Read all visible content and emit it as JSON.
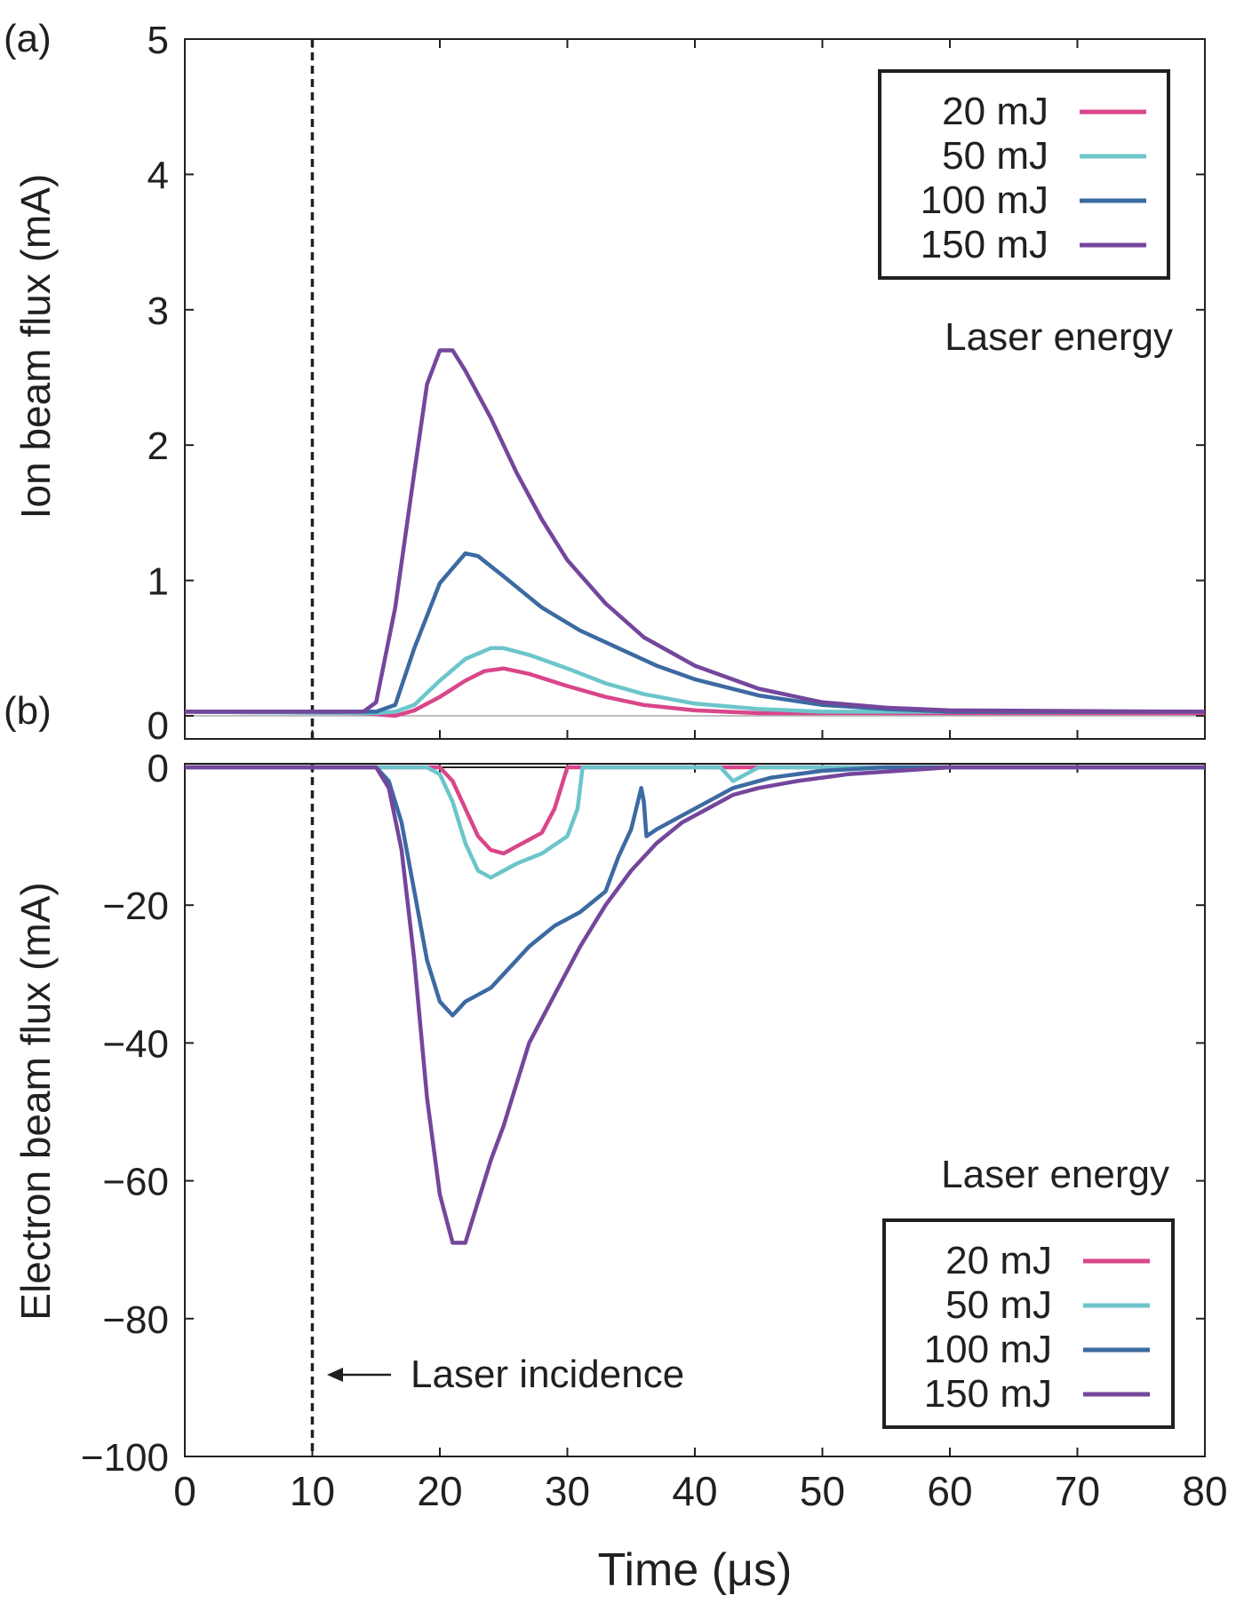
{
  "chart_data": [
    {
      "panel_label": "(a)",
      "type": "line",
      "ylabel": "Ion beam flux (mA)",
      "xlim": [
        0,
        80
      ],
      "ylim": [
        0,
        5
      ],
      "yticks": [
        "0",
        "1",
        "2",
        "3",
        "4",
        "5"
      ],
      "legend_title": "Laser energy",
      "legend_position": "top-right",
      "series": [
        {
          "name": "20 mJ",
          "color": "#d9468a",
          "points": [
            [
              0,
              0.03
            ],
            [
              14,
              0.02
            ],
            [
              16.5,
              0.0
            ],
            [
              18,
              0.04
            ],
            [
              20,
              0.14
            ],
            [
              22,
              0.26
            ],
            [
              23.5,
              0.33
            ],
            [
              25,
              0.35
            ],
            [
              27,
              0.31
            ],
            [
              30,
              0.22
            ],
            [
              33,
              0.14
            ],
            [
              36,
              0.08
            ],
            [
              40,
              0.04
            ],
            [
              45,
              0.02
            ],
            [
              80,
              0.02
            ]
          ]
        },
        {
          "name": "50 mJ",
          "color": "#6cc5cb",
          "points": [
            [
              0,
              0.03
            ],
            [
              15,
              0.02
            ],
            [
              16.5,
              0.03
            ],
            [
              18,
              0.08
            ],
            [
              20,
              0.26
            ],
            [
              22,
              0.42
            ],
            [
              24,
              0.5
            ],
            [
              25,
              0.5
            ],
            [
              27,
              0.45
            ],
            [
              30,
              0.35
            ],
            [
              33,
              0.24
            ],
            [
              36,
              0.16
            ],
            [
              40,
              0.09
            ],
            [
              45,
              0.05
            ],
            [
              50,
              0.03
            ],
            [
              80,
              0.03
            ]
          ]
        },
        {
          "name": "100 mJ",
          "color": "#3c6aa2",
          "points": [
            [
              0,
              0.03
            ],
            [
              15,
              0.03
            ],
            [
              16.5,
              0.08
            ],
            [
              18,
              0.5
            ],
            [
              20,
              0.98
            ],
            [
              22,
              1.2
            ],
            [
              23,
              1.18
            ],
            [
              25,
              1.03
            ],
            [
              28,
              0.8
            ],
            [
              31,
              0.63
            ],
            [
              34,
              0.5
            ],
            [
              37,
              0.37
            ],
            [
              40,
              0.27
            ],
            [
              45,
              0.15
            ],
            [
              50,
              0.08
            ],
            [
              55,
              0.05
            ],
            [
              60,
              0.03
            ],
            [
              80,
              0.03
            ]
          ]
        },
        {
          "name": "150 mJ",
          "color": "#74469c",
          "points": [
            [
              0,
              0.03
            ],
            [
              14,
              0.03
            ],
            [
              15,
              0.1
            ],
            [
              16.5,
              0.8
            ],
            [
              18,
              1.8
            ],
            [
              19,
              2.45
            ],
            [
              20,
              2.7
            ],
            [
              21,
              2.7
            ],
            [
              22,
              2.55
            ],
            [
              24,
              2.2
            ],
            [
              26,
              1.8
            ],
            [
              28,
              1.45
            ],
            [
              30,
              1.15
            ],
            [
              33,
              0.83
            ],
            [
              36,
              0.58
            ],
            [
              40,
              0.37
            ],
            [
              45,
              0.2
            ],
            [
              50,
              0.1
            ],
            [
              55,
              0.06
            ],
            [
              60,
              0.04
            ],
            [
              80,
              0.03
            ]
          ]
        }
      ]
    },
    {
      "panel_label": "(b)",
      "type": "line",
      "ylabel": "Electron beam  flux (mA)",
      "xlabel": "Time (μs)",
      "xlim": [
        0,
        80
      ],
      "ylim": [
        -100,
        0
      ],
      "xticks": [
        "0",
        "10",
        "20",
        "30",
        "40",
        "50",
        "60",
        "70",
        "80"
      ],
      "yticks": [
        "0",
        "−20",
        "−40",
        "−60",
        "−80",
        "−100"
      ],
      "legend_title": "Laser energy",
      "legend_position": "bottom-right",
      "series": [
        {
          "name": "20 mJ",
          "color": "#d9468a",
          "points": [
            [
              0,
              0
            ],
            [
              20,
              0
            ],
            [
              21,
              -2
            ],
            [
              22,
              -6
            ],
            [
              23,
              -10
            ],
            [
              24,
              -12
            ],
            [
              25,
              -12.5
            ],
            [
              26,
              -11.5
            ],
            [
              27,
              -10.5
            ],
            [
              28,
              -9.5
            ],
            [
              29,
              -6
            ],
            [
              30,
              0
            ],
            [
              80,
              0
            ]
          ]
        },
        {
          "name": "50 mJ",
          "color": "#6cc5cb",
          "points": [
            [
              0,
              0
            ],
            [
              19,
              0
            ],
            [
              20,
              -1
            ],
            [
              21,
              -5
            ],
            [
              22,
              -11
            ],
            [
              23,
              -15
            ],
            [
              24,
              -16
            ],
            [
              25,
              -15
            ],
            [
              26,
              -14
            ],
            [
              28,
              -12.5
            ],
            [
              30,
              -10
            ],
            [
              30.8,
              -6
            ],
            [
              31.2,
              0
            ],
            [
              42,
              0
            ],
            [
              43,
              -2
            ],
            [
              44,
              -1
            ],
            [
              45,
              0
            ],
            [
              80,
              0
            ]
          ]
        },
        {
          "name": "100 mJ",
          "color": "#3c6aa2",
          "points": [
            [
              0,
              0
            ],
            [
              15,
              0
            ],
            [
              16,
              -2
            ],
            [
              17,
              -8
            ],
            [
              18,
              -18
            ],
            [
              19,
              -28
            ],
            [
              20,
              -34
            ],
            [
              21,
              -36
            ],
            [
              22,
              -34
            ],
            [
              24,
              -32
            ],
            [
              25,
              -30
            ],
            [
              27,
              -26
            ],
            [
              29,
              -23
            ],
            [
              31,
              -21
            ],
            [
              33,
              -18
            ],
            [
              34,
              -13
            ],
            [
              35,
              -9
            ],
            [
              35.8,
              -3
            ],
            [
              36,
              -5
            ],
            [
              36.2,
              -10
            ],
            [
              37,
              -9
            ],
            [
              39,
              -7
            ],
            [
              41,
              -5
            ],
            [
              43,
              -3
            ],
            [
              46,
              -1.5
            ],
            [
              50,
              -0.5
            ],
            [
              55,
              0
            ],
            [
              80,
              0
            ]
          ]
        },
        {
          "name": "150 mJ",
          "color": "#74469c",
          "points": [
            [
              0,
              0
            ],
            [
              15,
              0
            ],
            [
              16,
              -3
            ],
            [
              17,
              -12
            ],
            [
              18,
              -28
            ],
            [
              19,
              -48
            ],
            [
              20,
              -62
            ],
            [
              21,
              -69
            ],
            [
              22,
              -69
            ],
            [
              23,
              -63
            ],
            [
              24,
              -57
            ],
            [
              25,
              -52
            ],
            [
              26,
              -46
            ],
            [
              27,
              -40
            ],
            [
              29,
              -33
            ],
            [
              31,
              -26
            ],
            [
              33,
              -20
            ],
            [
              35,
              -15
            ],
            [
              37,
              -11
            ],
            [
              39,
              -8
            ],
            [
              41,
              -6
            ],
            [
              43,
              -4
            ],
            [
              45,
              -3
            ],
            [
              48,
              -2
            ],
            [
              52,
              -1
            ],
            [
              56,
              -0.5
            ],
            [
              60,
              0
            ],
            [
              80,
              0
            ]
          ]
        }
      ]
    }
  ],
  "annotation": {
    "text": "Laser incidence",
    "x": 10,
    "y": -88
  },
  "vline": {
    "x": 10
  }
}
